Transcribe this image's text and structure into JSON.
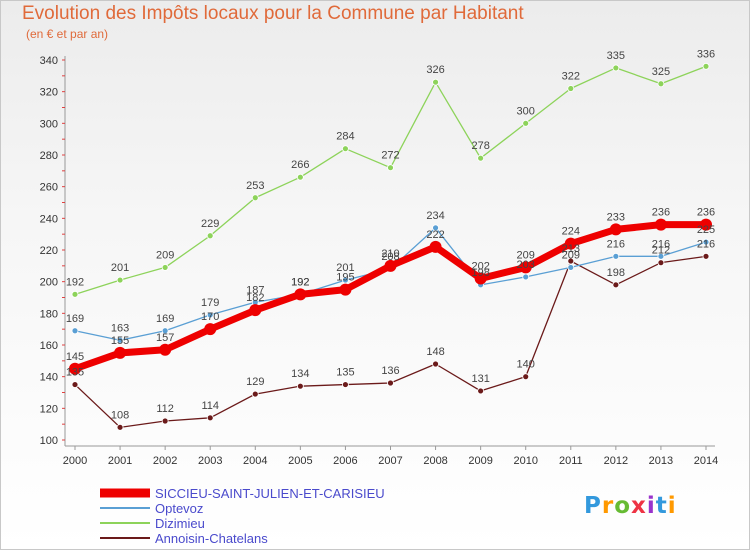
{
  "chart_data": {
    "type": "line",
    "title": "Evolution des Impôts locaux pour la Commune par Habitant",
    "subtitle": "(en € et par an)",
    "xlabel": "",
    "ylabel": "",
    "x": [
      "2000",
      "2001",
      "2002",
      "2003",
      "2004",
      "2005",
      "2006",
      "2007",
      "2008",
      "2009",
      "2010",
      "2011",
      "2012",
      "2013",
      "2014"
    ],
    "ylim": [
      100,
      340
    ],
    "yticks": [
      100,
      120,
      140,
      160,
      180,
      200,
      220,
      240,
      260,
      280,
      300,
      320,
      340
    ],
    "grid": false,
    "legend_position": "bottom-left",
    "series": [
      {
        "name": "SICCIEU-SAINT-JULIEN-ET-CARISIEU",
        "color": "#ee0000",
        "width": 7,
        "marker_r": 6,
        "values": [
          145,
          155,
          157,
          170,
          182,
          192,
          195,
          210,
          222,
          202,
          209,
          224,
          233,
          236,
          236
        ]
      },
      {
        "name": "Optevoz",
        "color": "#5a9fd4",
        "width": 1.3,
        "marker_r": 3,
        "values": [
          169,
          163,
          169,
          179,
          187,
          192,
          201,
          208,
          234,
          198,
          203,
          209,
          216,
          216,
          225
        ]
      },
      {
        "name": "Dizimieu",
        "color": "#8dd35a",
        "width": 1.3,
        "marker_r": 3,
        "values": [
          192,
          201,
          209,
          229,
          253,
          266,
          284,
          272,
          326,
          278,
          300,
          322,
          335,
          325,
          336
        ]
      },
      {
        "name": "Annoisin-Chatelans",
        "color": "#6b1a1a",
        "width": 1.3,
        "marker_r": 3,
        "values": [
          135,
          108,
          112,
          114,
          129,
          134,
          135,
          136,
          148,
          131,
          140,
          213,
          198,
          212,
          216
        ]
      }
    ]
  },
  "logo": {
    "letters": [
      "P",
      "r",
      "o",
      "x",
      "i",
      "t",
      "i"
    ],
    "colors": [
      "#3399dd",
      "#ff9900",
      "#66bb33",
      "#ee3344",
      "#9933cc",
      "#3399dd",
      "#ff9900"
    ]
  }
}
